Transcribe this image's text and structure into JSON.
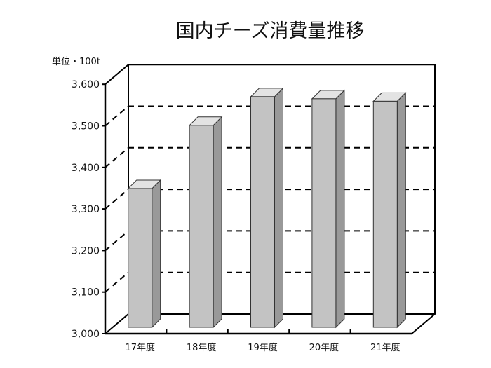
{
  "chart_data": {
    "type": "bar",
    "title": "国内チーズ消費量推移",
    "unit_label": "単位・100t",
    "categories": [
      "17年度",
      "18年度",
      "19年度",
      "20年度",
      "21年度"
    ],
    "values": [
      3334,
      3486,
      3555,
      3550,
      3544
    ],
    "ylim": [
      3000,
      3600
    ],
    "yticks": [
      "3,000",
      "3,100",
      "3,200",
      "3,300",
      "3,400",
      "3,500",
      "3,600"
    ],
    "grid": true,
    "style": "3d",
    "colors": {
      "front": "#c3c3c3",
      "side": "#999999",
      "top": "#e3e3e3"
    }
  }
}
